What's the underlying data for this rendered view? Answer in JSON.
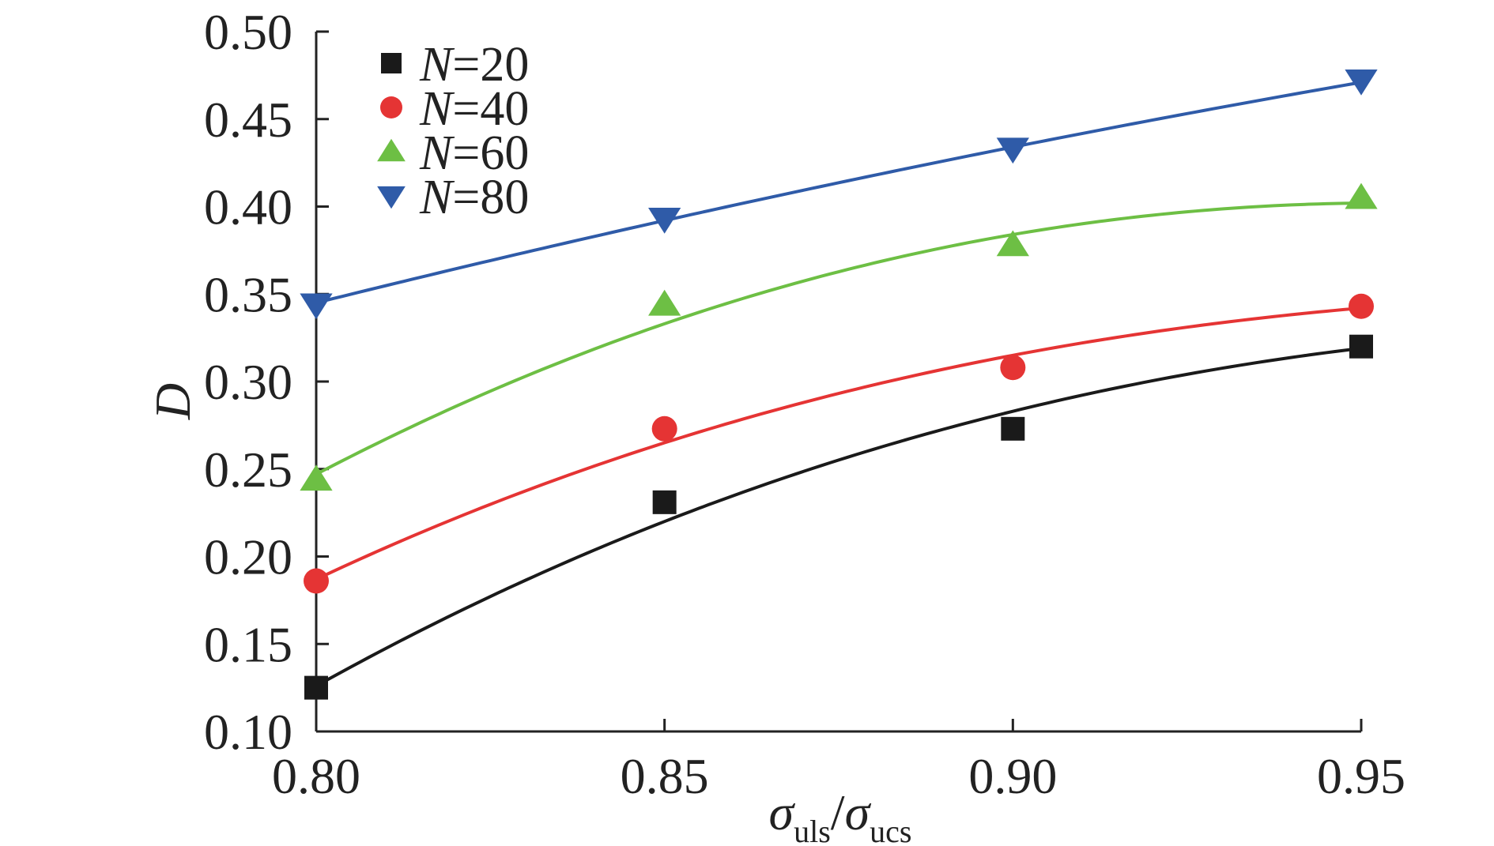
{
  "chart_data": {
    "type": "scatter",
    "xlabel": {
      "symbol": "σ",
      "sub1": "uls",
      "sep": "/",
      "sub2": "ucs"
    },
    "ylabel": "D",
    "xlim": [
      0.8,
      0.95
    ],
    "ylim": [
      0.1,
      0.5
    ],
    "xticks": [
      0.8,
      0.85,
      0.9,
      0.95
    ],
    "xtick_labels": [
      "0.80",
      "0.85",
      "0.90",
      "0.95"
    ],
    "yticks": [
      0.1,
      0.15,
      0.2,
      0.25,
      0.3,
      0.35,
      0.4,
      0.45,
      0.5
    ],
    "ytick_labels": [
      "0.10",
      "0.15",
      "0.20",
      "0.25",
      "0.30",
      "0.35",
      "0.40",
      "0.45",
      "0.50"
    ],
    "grid": false,
    "legend_position": "top-left",
    "x": [
      0.8,
      0.85,
      0.9,
      0.95
    ],
    "series": [
      {
        "name": "N=20",
        "name_var": "N",
        "name_rest": "=20",
        "marker": "square",
        "color": "#1a1a1a",
        "values": [
          0.125,
          0.231,
          0.273,
          0.32
        ],
        "fit": [
          0.126,
          0.22,
          0.283,
          0.319
        ]
      },
      {
        "name": "N=40",
        "name_var": "N",
        "name_rest": "=40",
        "marker": "circle",
        "color": "#e53434",
        "values": [
          0.186,
          0.273,
          0.308,
          0.343
        ],
        "fit": [
          0.187,
          0.265,
          0.315,
          0.342
        ]
      },
      {
        "name": "N=60",
        "name_var": "N",
        "name_rest": "=60",
        "marker": "triangle-up",
        "color": "#6dbf44",
        "values": [
          0.244,
          0.344,
          0.378,
          0.405
        ],
        "fit": [
          0.247,
          0.333,
          0.384,
          0.402
        ]
      },
      {
        "name": "N=80",
        "name_var": "N",
        "name_rest": "=80",
        "marker": "triangle-down",
        "color": "#2f5ba8",
        "values": [
          0.344,
          0.393,
          0.433,
          0.472
        ],
        "fit": [
          0.345,
          0.392,
          0.434,
          0.471
        ]
      }
    ]
  }
}
